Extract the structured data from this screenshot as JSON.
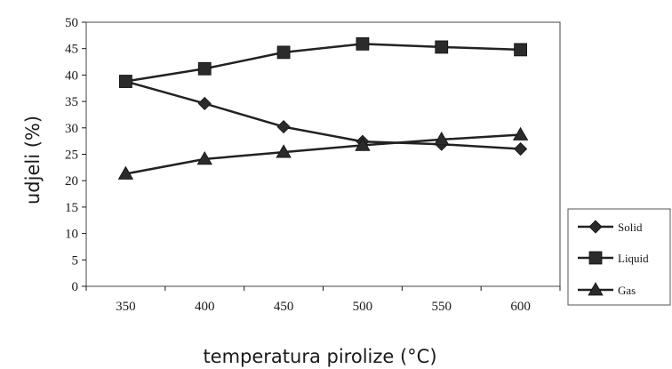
{
  "chart_data": {
    "type": "line",
    "x": [
      350,
      400,
      450,
      500,
      550,
      600
    ],
    "x_ticks": [
      "350",
      "400",
      "450",
      "500",
      "550",
      "600"
    ],
    "y_ticks": [
      "0",
      "5",
      "10",
      "15",
      "20",
      "25",
      "30",
      "35",
      "40",
      "45",
      "50"
    ],
    "ylim": [
      0,
      50
    ],
    "xlim": [
      325,
      625
    ],
    "xlabel": "temperatura pirolize (°C)",
    "ylabel": "udjeli (%)",
    "grid": false,
    "legend_position": "right",
    "series": [
      {
        "name": "Solid",
        "marker": "diamond",
        "values": [
          38.8,
          34.6,
          30.2,
          27.4,
          26.9,
          26.0
        ]
      },
      {
        "name": "Liquid",
        "marker": "square",
        "values": [
          38.8,
          41.2,
          44.3,
          45.9,
          45.3,
          44.8
        ]
      },
      {
        "name": "Gas",
        "marker": "triangle",
        "values": [
          21.3,
          24.1,
          25.4,
          26.7,
          27.8,
          28.7
        ]
      }
    ],
    "colors": {
      "line": "#222222",
      "marker": "#2b2b2b",
      "axis": "#1a1a1a"
    }
  }
}
